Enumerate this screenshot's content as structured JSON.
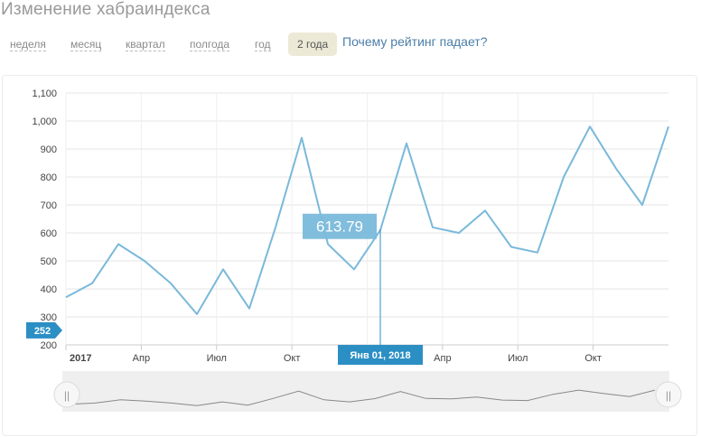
{
  "page": {
    "title": "Изменение хабраиндекса"
  },
  "periods": [
    {
      "label": "неделя",
      "active": false
    },
    {
      "label": "месяц",
      "active": false
    },
    {
      "label": "квартал",
      "active": false
    },
    {
      "label": "полгода",
      "active": false
    },
    {
      "label": "год",
      "active": false
    },
    {
      "label": "2 года",
      "active": true
    }
  ],
  "why_link": "Почему рейтинг падает?",
  "chart_data": {
    "type": "line",
    "yticks": [
      "1,100",
      "1,000",
      "900",
      "800",
      "700",
      "600",
      "500",
      "400",
      "300",
      "200"
    ],
    "ylim": [
      200,
      1100
    ],
    "xticks": [
      "2017",
      "Апр",
      "Июл",
      "Окт",
      "Янв 01, 2018",
      "Апр",
      "Июл",
      "Окт"
    ],
    "x": [
      "2017-01",
      "2017-02",
      "2017-03",
      "2017-04",
      "2017-05",
      "2017-06",
      "2017-07",
      "2017-08",
      "2017-09",
      "2017-10",
      "2017-11",
      "2017-12",
      "2018-01",
      "2018-02",
      "2018-03",
      "2018-04",
      "2018-05",
      "2018-06",
      "2018-07",
      "2018-08",
      "2018-09",
      "2018-10",
      "2018-11",
      "2018-12"
    ],
    "series": [
      {
        "values": [
          370,
          420,
          560,
          500,
          420,
          310,
          470,
          330,
          620,
          940,
          560,
          470,
          610,
          920,
          620,
          600,
          680,
          550,
          530,
          800,
          980,
          830,
          700,
          980
        ]
      }
    ],
    "crosshair": {
      "value": "613.79",
      "date": "Янв 01, 2018"
    },
    "y_marker": "252",
    "line_color": "#7ab9da",
    "accent_color": "#2b8fc4"
  },
  "navigator": {
    "left_handle": "||",
    "right_handle": "||"
  }
}
